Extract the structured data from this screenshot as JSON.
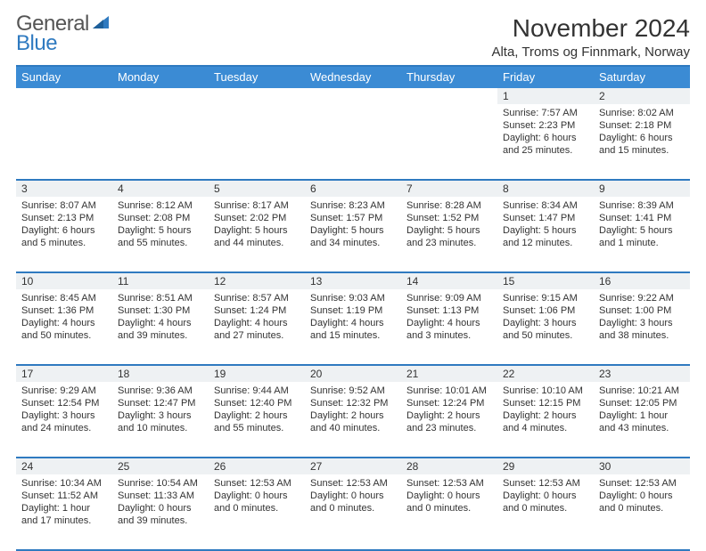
{
  "brand": {
    "top": "General",
    "bottom": "Blue"
  },
  "title": "November 2024",
  "subtitle": "Alta, Troms og Finnmark, Norway",
  "colors": {
    "header_bar": "#3b8bd4",
    "accent_line": "#2f7ac0",
    "daynum_bg": "#eef1f3",
    "text": "#333333",
    "bg": "#ffffff"
  },
  "day_headers": [
    "Sunday",
    "Monday",
    "Tuesday",
    "Wednesday",
    "Thursday",
    "Friday",
    "Saturday"
  ],
  "weeks": [
    [
      null,
      null,
      null,
      null,
      null,
      {
        "n": "1",
        "sr": "Sunrise: 7:57 AM",
        "ss": "Sunset: 2:23 PM",
        "dl": "Daylight: 6 hours and 25 minutes."
      },
      {
        "n": "2",
        "sr": "Sunrise: 8:02 AM",
        "ss": "Sunset: 2:18 PM",
        "dl": "Daylight: 6 hours and 15 minutes."
      }
    ],
    [
      {
        "n": "3",
        "sr": "Sunrise: 8:07 AM",
        "ss": "Sunset: 2:13 PM",
        "dl": "Daylight: 6 hours and 5 minutes."
      },
      {
        "n": "4",
        "sr": "Sunrise: 8:12 AM",
        "ss": "Sunset: 2:08 PM",
        "dl": "Daylight: 5 hours and 55 minutes."
      },
      {
        "n": "5",
        "sr": "Sunrise: 8:17 AM",
        "ss": "Sunset: 2:02 PM",
        "dl": "Daylight: 5 hours and 44 minutes."
      },
      {
        "n": "6",
        "sr": "Sunrise: 8:23 AM",
        "ss": "Sunset: 1:57 PM",
        "dl": "Daylight: 5 hours and 34 minutes."
      },
      {
        "n": "7",
        "sr": "Sunrise: 8:28 AM",
        "ss": "Sunset: 1:52 PM",
        "dl": "Daylight: 5 hours and 23 minutes."
      },
      {
        "n": "8",
        "sr": "Sunrise: 8:34 AM",
        "ss": "Sunset: 1:47 PM",
        "dl": "Daylight: 5 hours and 12 minutes."
      },
      {
        "n": "9",
        "sr": "Sunrise: 8:39 AM",
        "ss": "Sunset: 1:41 PM",
        "dl": "Daylight: 5 hours and 1 minute."
      }
    ],
    [
      {
        "n": "10",
        "sr": "Sunrise: 8:45 AM",
        "ss": "Sunset: 1:36 PM",
        "dl": "Daylight: 4 hours and 50 minutes."
      },
      {
        "n": "11",
        "sr": "Sunrise: 8:51 AM",
        "ss": "Sunset: 1:30 PM",
        "dl": "Daylight: 4 hours and 39 minutes."
      },
      {
        "n": "12",
        "sr": "Sunrise: 8:57 AM",
        "ss": "Sunset: 1:24 PM",
        "dl": "Daylight: 4 hours and 27 minutes."
      },
      {
        "n": "13",
        "sr": "Sunrise: 9:03 AM",
        "ss": "Sunset: 1:19 PM",
        "dl": "Daylight: 4 hours and 15 minutes."
      },
      {
        "n": "14",
        "sr": "Sunrise: 9:09 AM",
        "ss": "Sunset: 1:13 PM",
        "dl": "Daylight: 4 hours and 3 minutes."
      },
      {
        "n": "15",
        "sr": "Sunrise: 9:15 AM",
        "ss": "Sunset: 1:06 PM",
        "dl": "Daylight: 3 hours and 50 minutes."
      },
      {
        "n": "16",
        "sr": "Sunrise: 9:22 AM",
        "ss": "Sunset: 1:00 PM",
        "dl": "Daylight: 3 hours and 38 minutes."
      }
    ],
    [
      {
        "n": "17",
        "sr": "Sunrise: 9:29 AM",
        "ss": "Sunset: 12:54 PM",
        "dl": "Daylight: 3 hours and 24 minutes."
      },
      {
        "n": "18",
        "sr": "Sunrise: 9:36 AM",
        "ss": "Sunset: 12:47 PM",
        "dl": "Daylight: 3 hours and 10 minutes."
      },
      {
        "n": "19",
        "sr": "Sunrise: 9:44 AM",
        "ss": "Sunset: 12:40 PM",
        "dl": "Daylight: 2 hours and 55 minutes."
      },
      {
        "n": "20",
        "sr": "Sunrise: 9:52 AM",
        "ss": "Sunset: 12:32 PM",
        "dl": "Daylight: 2 hours and 40 minutes."
      },
      {
        "n": "21",
        "sr": "Sunrise: 10:01 AM",
        "ss": "Sunset: 12:24 PM",
        "dl": "Daylight: 2 hours and 23 minutes."
      },
      {
        "n": "22",
        "sr": "Sunrise: 10:10 AM",
        "ss": "Sunset: 12:15 PM",
        "dl": "Daylight: 2 hours and 4 minutes."
      },
      {
        "n": "23",
        "sr": "Sunrise: 10:21 AM",
        "ss": "Sunset: 12:05 PM",
        "dl": "Daylight: 1 hour and 43 minutes."
      }
    ],
    [
      {
        "n": "24",
        "sr": "Sunrise: 10:34 AM",
        "ss": "Sunset: 11:52 AM",
        "dl": "Daylight: 1 hour and 17 minutes."
      },
      {
        "n": "25",
        "sr": "Sunrise: 10:54 AM",
        "ss": "Sunset: 11:33 AM",
        "dl": "Daylight: 0 hours and 39 minutes."
      },
      {
        "n": "26",
        "sr": "",
        "ss": "Sunset: 12:53 AM",
        "dl": "Daylight: 0 hours and 0 minutes."
      },
      {
        "n": "27",
        "sr": "",
        "ss": "Sunset: 12:53 AM",
        "dl": "Daylight: 0 hours and 0 minutes."
      },
      {
        "n": "28",
        "sr": "",
        "ss": "Sunset: 12:53 AM",
        "dl": "Daylight: 0 hours and 0 minutes."
      },
      {
        "n": "29",
        "sr": "",
        "ss": "Sunset: 12:53 AM",
        "dl": "Daylight: 0 hours and 0 minutes."
      },
      {
        "n": "30",
        "sr": "",
        "ss": "Sunset: 12:53 AM",
        "dl": "Daylight: 0 hours and 0 minutes."
      }
    ]
  ]
}
